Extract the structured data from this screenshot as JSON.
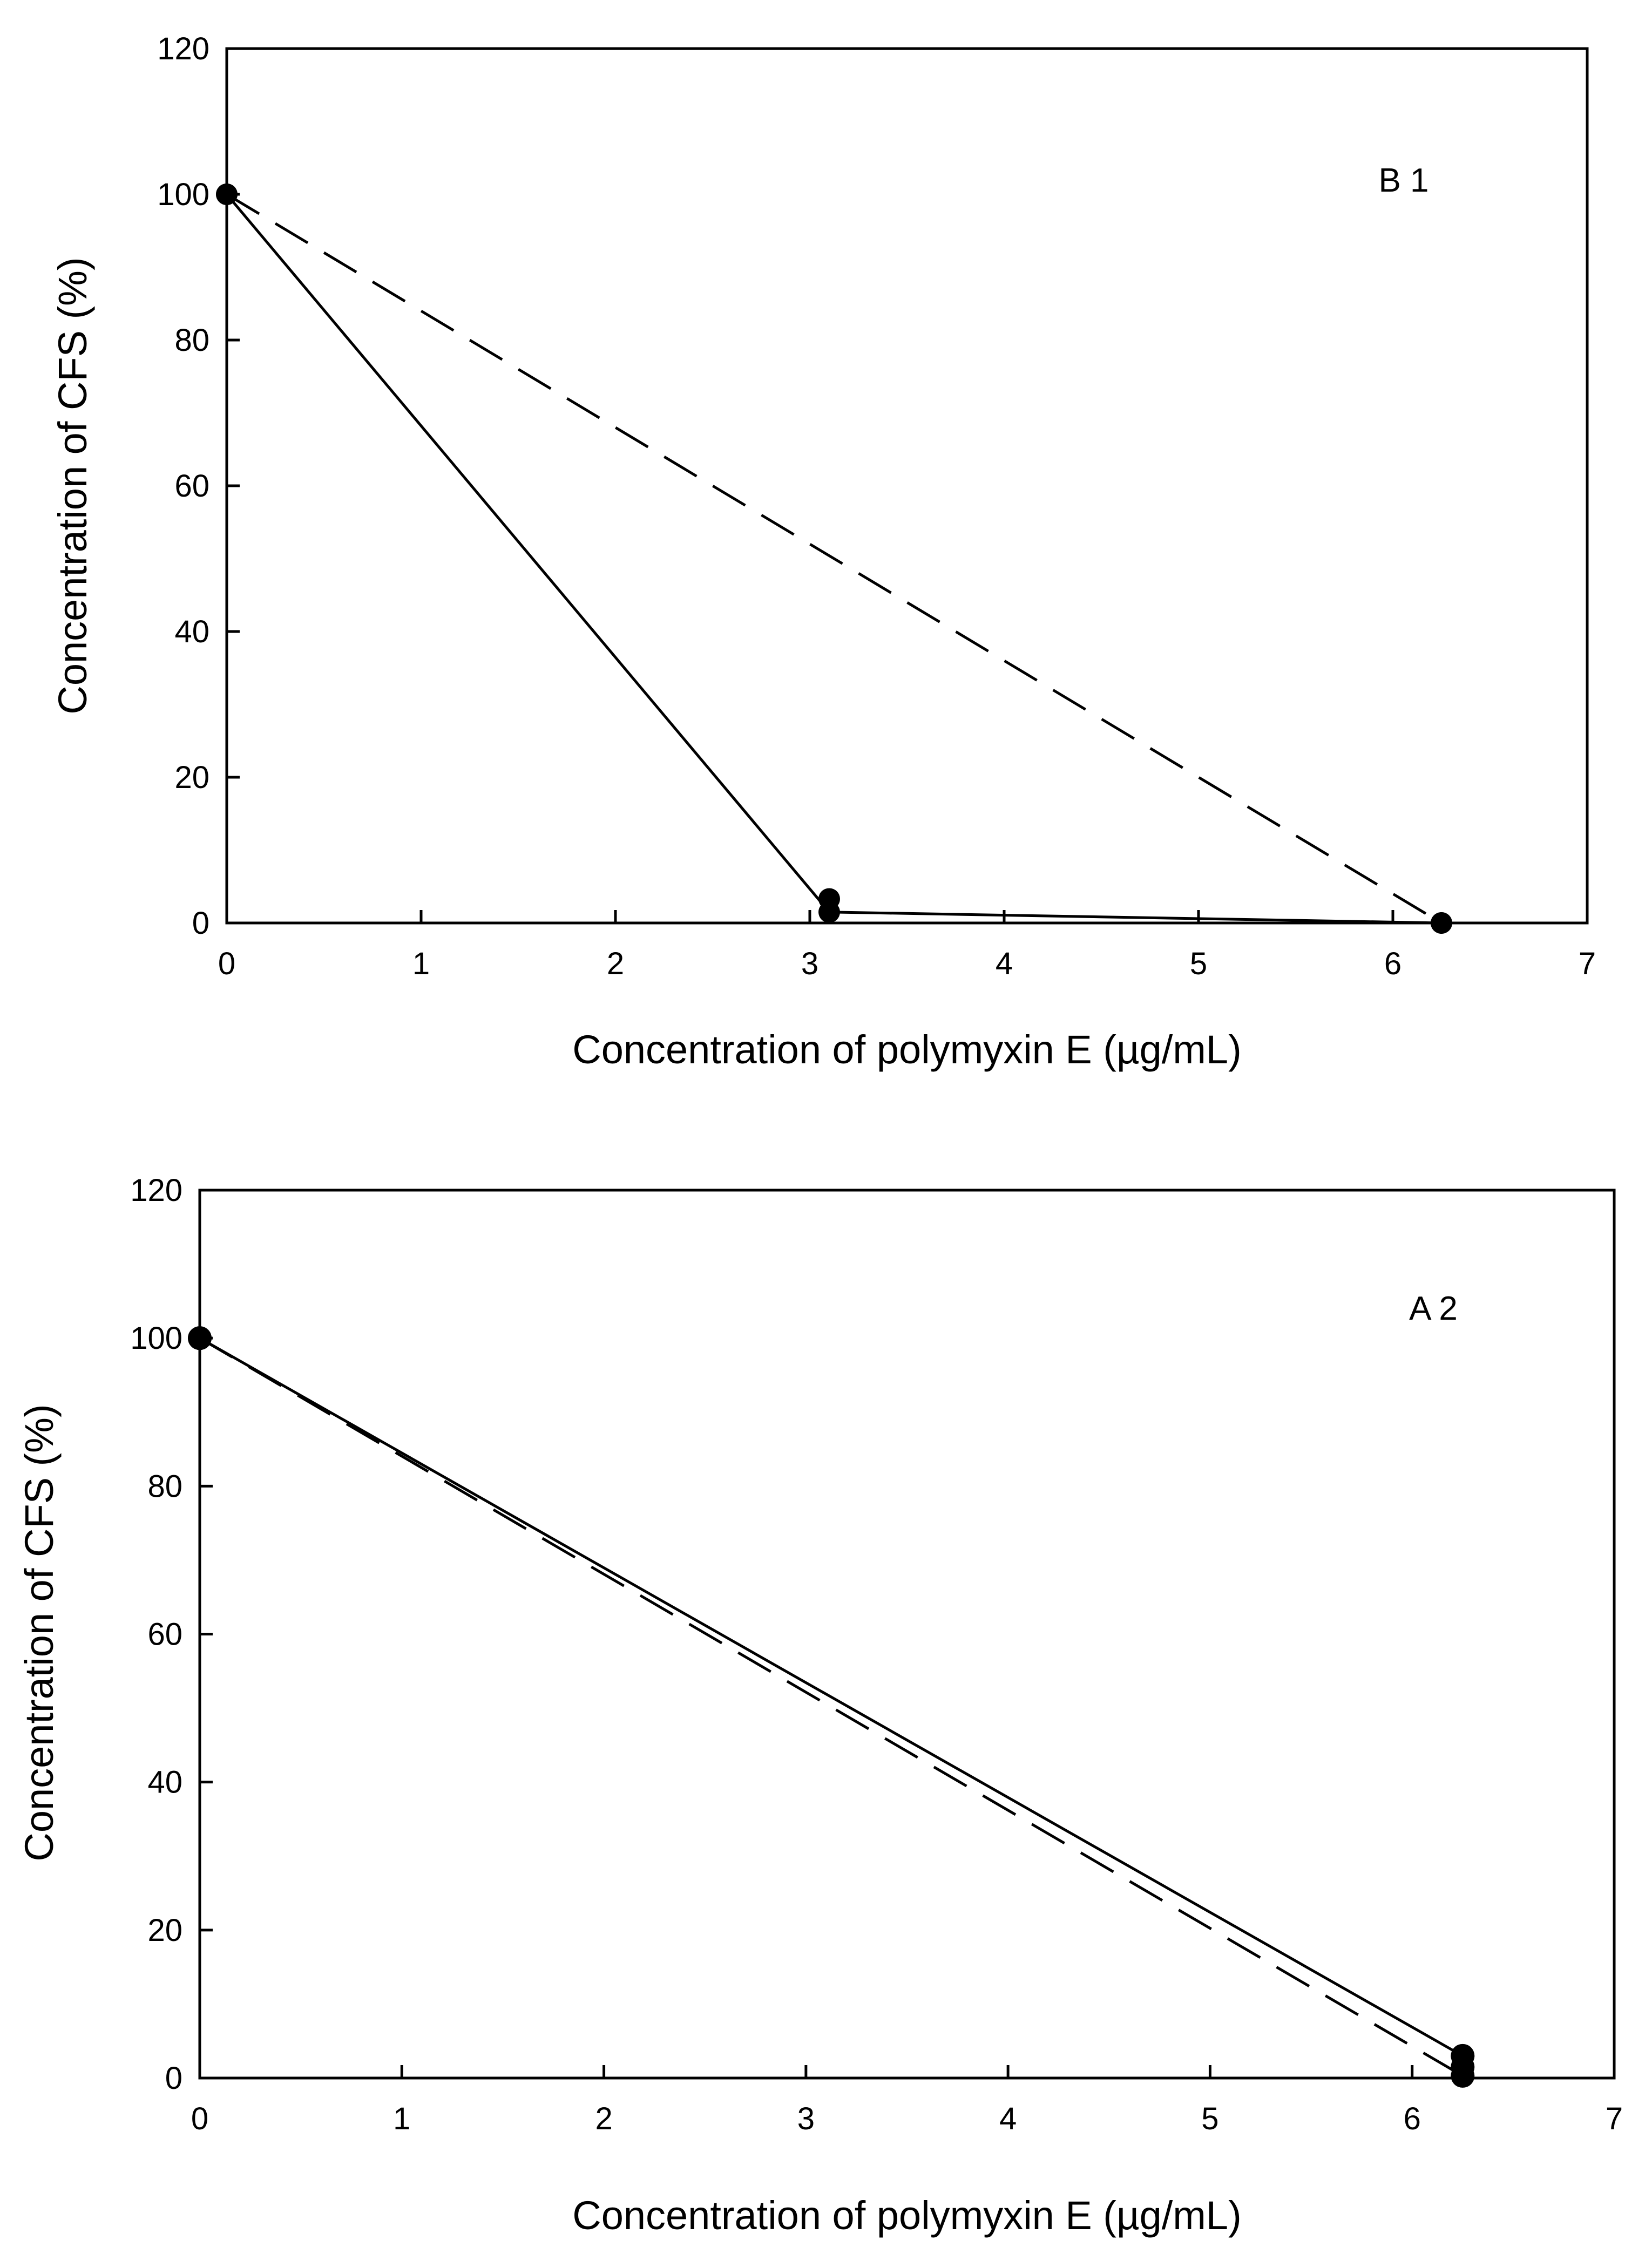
{
  "chart_data": [
    {
      "type": "line",
      "panel_label": "B 1",
      "xlabel": "Concentration of polymyxin E (µg/mL)",
      "ylabel": "Concentration of CFS (%)",
      "xlim": [
        0,
        7
      ],
      "ylim": [
        0,
        120
      ],
      "xticks": [
        0,
        1,
        2,
        3,
        4,
        5,
        6,
        7
      ],
      "yticks": [
        0,
        20,
        40,
        60,
        80,
        100,
        120
      ],
      "series": [
        {
          "name": "solid",
          "style": "solid",
          "points": [
            [
              0,
              100
            ],
            [
              3.1,
              1.5
            ],
            [
              6.25,
              0
            ]
          ],
          "markers": [
            [
              0,
              100
            ],
            [
              3.1,
              1.5
            ],
            [
              3.1,
              3.3
            ],
            [
              6.25,
              0
            ]
          ]
        },
        {
          "name": "dashed",
          "style": "dashed",
          "points": [
            [
              0,
              100
            ],
            [
              6.25,
              0
            ]
          ],
          "markers": [
            [
              0,
              100
            ],
            [
              6.25,
              0
            ]
          ]
        }
      ]
    },
    {
      "type": "line",
      "panel_label": "A 2",
      "xlabel": "Concentration  of polymyxin E (µg/mL)",
      "ylabel": "Concentration of CFS (%)",
      "xlim": [
        0,
        7
      ],
      "ylim": [
        0,
        120
      ],
      "xticks": [
        0,
        1,
        2,
        3,
        4,
        5,
        6,
        7
      ],
      "yticks": [
        0,
        20,
        40,
        60,
        80,
        100,
        120
      ],
      "series": [
        {
          "name": "solid",
          "style": "solid",
          "points": [
            [
              0,
              100
            ],
            [
              6.25,
              3
            ]
          ],
          "markers": [
            [
              0,
              100
            ],
            [
              6.25,
              3
            ],
            [
              6.25,
              1.5
            ]
          ]
        },
        {
          "name": "dashed",
          "style": "dashed",
          "points": [
            [
              0,
              100
            ],
            [
              6.25,
              0.3
            ]
          ],
          "markers": [
            [
              0,
              100
            ],
            [
              6.25,
              0.3
            ]
          ]
        }
      ]
    }
  ]
}
